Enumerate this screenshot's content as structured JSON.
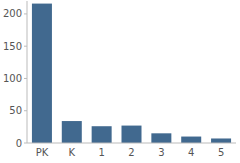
{
  "chart_data": {
    "type": "bar",
    "categories": [
      "PK",
      "K",
      "1",
      "2",
      "3",
      "4",
      "5"
    ],
    "values": [
      216,
      34,
      26,
      27,
      15,
      10,
      7
    ],
    "color": "#41698f",
    "ylim": [
      0,
      220
    ],
    "yticks": [
      0,
      50,
      100,
      150,
      200
    ],
    "grid": false
  }
}
